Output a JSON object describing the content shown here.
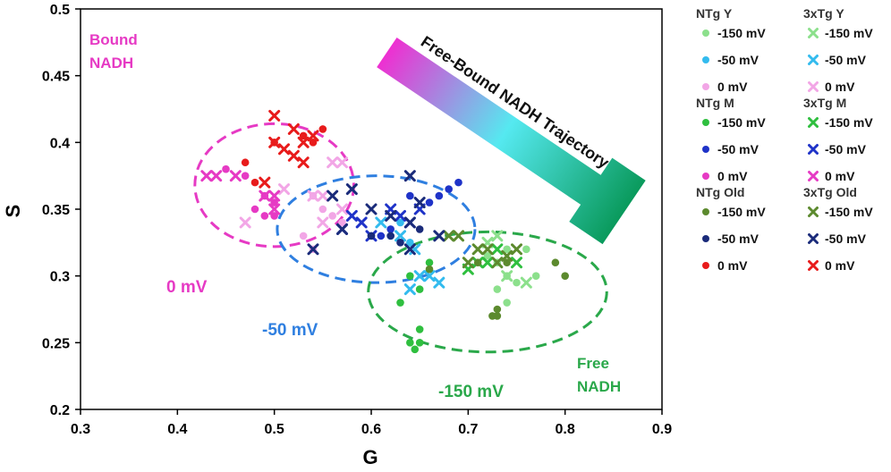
{
  "chart_data": {
    "type": "scatter",
    "xlabel": "G",
    "ylabel": "S",
    "xlim": [
      0.3,
      0.9
    ],
    "ylim": [
      0.2,
      0.5
    ],
    "xticks": [
      "0.3",
      "0.4",
      "0.5",
      "0.6",
      "0.7",
      "0.8",
      "0.9"
    ],
    "yticks": [
      "0.2",
      "0.25",
      "0.3",
      "0.35",
      "0.4",
      "0.45",
      "0.5"
    ],
    "legend_groups": [
      {
        "title": "NTg Y",
        "entries": [
          {
            "label": "-150 mV",
            "marker": "circle",
            "color": "#8ce08c"
          },
          {
            "label": "-50 mV",
            "marker": "circle",
            "color": "#33bbee"
          },
          {
            "label": "0 mV",
            "marker": "circle",
            "color": "#f2a6e6"
          }
        ]
      },
      {
        "title": "3xTg Y",
        "entries": [
          {
            "label": "-150 mV",
            "marker": "x",
            "color": "#8ce08c"
          },
          {
            "label": "-50 mV",
            "marker": "x",
            "color": "#33bbee"
          },
          {
            "label": "0 mV",
            "marker": "x",
            "color": "#f2a6e6"
          }
        ]
      },
      {
        "title": "NTg M",
        "entries": [
          {
            "label": "-150 mV",
            "marker": "circle",
            "color": "#2fbf3f"
          },
          {
            "label": "-50 mV",
            "marker": "circle",
            "color": "#1f33c8"
          },
          {
            "label": "0 mV",
            "marker": "circle",
            "color": "#e63ac4"
          }
        ]
      },
      {
        "title": "3xTg M",
        "entries": [
          {
            "label": "-150 mV",
            "marker": "x",
            "color": "#2fbf3f"
          },
          {
            "label": "-50 mV",
            "marker": "x",
            "color": "#1f33c8"
          },
          {
            "label": "0 mV",
            "marker": "x",
            "color": "#e63ac4"
          }
        ]
      },
      {
        "title": "NTg Old",
        "entries": [
          {
            "label": "-150 mV",
            "marker": "circle",
            "color": "#5c8a2e"
          },
          {
            "label": "-50 mV",
            "marker": "circle",
            "color": "#1a2b7a"
          },
          {
            "label": "0 mV",
            "marker": "circle",
            "color": "#e81b1b"
          }
        ]
      },
      {
        "title": "3xTg Old",
        "entries": [
          {
            "label": "-150 mV",
            "marker": "x",
            "color": "#5c8a2e"
          },
          {
            "label": "-50 mV",
            "marker": "x",
            "color": "#1a2b7a"
          },
          {
            "label": "0 mV",
            "marker": "x",
            "color": "#e81b1b"
          }
        ]
      }
    ],
    "series": [
      {
        "name": "NTg Y -150 mV",
        "marker": "circle",
        "color": "#8ce08c",
        "points": [
          [
            0.73,
            0.31
          ],
          [
            0.74,
            0.3
          ],
          [
            0.75,
            0.295
          ],
          [
            0.74,
            0.28
          ],
          [
            0.73,
            0.29
          ],
          [
            0.77,
            0.3
          ],
          [
            0.76,
            0.32
          ],
          [
            0.72,
            0.315
          ],
          [
            0.74,
            0.32
          ]
        ]
      },
      {
        "name": "NTg Y -50 mV",
        "marker": "circle",
        "color": "#33bbee",
        "points": [
          [
            0.62,
            0.33
          ],
          [
            0.64,
            0.325
          ],
          [
            0.63,
            0.34
          ]
        ]
      },
      {
        "name": "NTg Y 0 mV",
        "marker": "circle",
        "color": "#f2a6e6",
        "points": [
          [
            0.55,
            0.35
          ],
          [
            0.56,
            0.345
          ],
          [
            0.54,
            0.36
          ],
          [
            0.53,
            0.33
          ],
          [
            0.54,
            0.32
          ],
          [
            0.57,
            0.34
          ]
        ]
      },
      {
        "name": "3xTg Y -150 mV",
        "marker": "x",
        "color": "#8ce08c",
        "points": [
          [
            0.74,
            0.3
          ],
          [
            0.76,
            0.295
          ],
          [
            0.72,
            0.325
          ],
          [
            0.73,
            0.33
          ]
        ]
      },
      {
        "name": "3xTg Y -50 mV",
        "marker": "x",
        "color": "#33bbee",
        "points": [
          [
            0.64,
            0.29
          ],
          [
            0.65,
            0.3
          ],
          [
            0.66,
            0.3
          ],
          [
            0.67,
            0.295
          ],
          [
            0.645,
            0.32
          ],
          [
            0.61,
            0.34
          ],
          [
            0.63,
            0.33
          ]
        ]
      },
      {
        "name": "3xTg Y 0 mV",
        "marker": "x",
        "color": "#f2a6e6",
        "points": [
          [
            0.51,
            0.365
          ],
          [
            0.56,
            0.385
          ],
          [
            0.57,
            0.385
          ],
          [
            0.55,
            0.36
          ],
          [
            0.54,
            0.36
          ],
          [
            0.47,
            0.34
          ],
          [
            0.55,
            0.34
          ],
          [
            0.57,
            0.35
          ]
        ]
      },
      {
        "name": "NTg M -150 mV",
        "marker": "circle",
        "color": "#2fbf3f",
        "points": [
          [
            0.64,
            0.25
          ],
          [
            0.645,
            0.245
          ],
          [
            0.65,
            0.25
          ],
          [
            0.65,
            0.26
          ],
          [
            0.64,
            0.3
          ],
          [
            0.65,
            0.29
          ],
          [
            0.63,
            0.28
          ],
          [
            0.66,
            0.31
          ]
        ]
      },
      {
        "name": "NTg M -50 mV",
        "marker": "circle",
        "color": "#1f33c8",
        "points": [
          [
            0.6,
            0.33
          ],
          [
            0.61,
            0.33
          ],
          [
            0.62,
            0.335
          ],
          [
            0.64,
            0.36
          ],
          [
            0.66,
            0.355
          ],
          [
            0.67,
            0.36
          ],
          [
            0.68,
            0.365
          ],
          [
            0.69,
            0.37
          ]
        ]
      },
      {
        "name": "NTg M 0 mV",
        "marker": "circle",
        "color": "#e63ac4",
        "points": [
          [
            0.45,
            0.38
          ],
          [
            0.47,
            0.375
          ],
          [
            0.49,
            0.36
          ],
          [
            0.5,
            0.355
          ],
          [
            0.48,
            0.35
          ],
          [
            0.49,
            0.345
          ],
          [
            0.5,
            0.345
          ]
        ]
      },
      {
        "name": "3xTg M -150 mV",
        "marker": "x",
        "color": "#2fbf3f",
        "points": [
          [
            0.71,
            0.31
          ],
          [
            0.72,
            0.31
          ],
          [
            0.73,
            0.32
          ],
          [
            0.75,
            0.31
          ],
          [
            0.7,
            0.305
          ]
        ]
      },
      {
        "name": "3xTg M -50 mV",
        "marker": "x",
        "color": "#1f33c8",
        "points": [
          [
            0.57,
            0.335
          ],
          [
            0.58,
            0.345
          ],
          [
            0.59,
            0.34
          ],
          [
            0.6,
            0.33
          ],
          [
            0.62,
            0.35
          ],
          [
            0.63,
            0.345
          ],
          [
            0.64,
            0.34
          ],
          [
            0.65,
            0.35
          ]
        ]
      },
      {
        "name": "3xTg M 0 mV",
        "marker": "x",
        "color": "#e63ac4",
        "points": [
          [
            0.43,
            0.375
          ],
          [
            0.44,
            0.375
          ],
          [
            0.46,
            0.375
          ],
          [
            0.49,
            0.36
          ],
          [
            0.5,
            0.36
          ],
          [
            0.5,
            0.35
          ]
        ]
      },
      {
        "name": "NTg Old -150 mV",
        "marker": "circle",
        "color": "#5c8a2e",
        "points": [
          [
            0.79,
            0.31
          ],
          [
            0.8,
            0.3
          ],
          [
            0.725,
            0.27
          ],
          [
            0.73,
            0.27
          ],
          [
            0.73,
            0.275
          ],
          [
            0.71,
            0.31
          ],
          [
            0.74,
            0.31
          ],
          [
            0.66,
            0.305
          ]
        ]
      },
      {
        "name": "NTg Old -50 mV",
        "marker": "circle",
        "color": "#1a2b7a",
        "points": [
          [
            0.6,
            0.33
          ],
          [
            0.62,
            0.33
          ],
          [
            0.65,
            0.335
          ],
          [
            0.63,
            0.325
          ]
        ]
      },
      {
        "name": "NTg Old 0 mV",
        "marker": "circle",
        "color": "#e81b1b",
        "points": [
          [
            0.47,
            0.385
          ],
          [
            0.48,
            0.37
          ],
          [
            0.53,
            0.405
          ],
          [
            0.54,
            0.4
          ],
          [
            0.55,
            0.41
          ],
          [
            0.5,
            0.4
          ]
        ]
      },
      {
        "name": "3xTg Old -150 mV",
        "marker": "x",
        "color": "#5c8a2e",
        "points": [
          [
            0.7,
            0.31
          ],
          [
            0.72,
            0.32
          ],
          [
            0.73,
            0.31
          ],
          [
            0.74,
            0.315
          ],
          [
            0.69,
            0.33
          ],
          [
            0.68,
            0.33
          ],
          [
            0.75,
            0.32
          ],
          [
            0.71,
            0.32
          ]
        ]
      },
      {
        "name": "3xTg Old -50 mV",
        "marker": "x",
        "color": "#1a2b7a",
        "points": [
          [
            0.58,
            0.365
          ],
          [
            0.57,
            0.335
          ],
          [
            0.6,
            0.35
          ],
          [
            0.62,
            0.345
          ],
          [
            0.64,
            0.34
          ],
          [
            0.64,
            0.375
          ],
          [
            0.64,
            0.32
          ],
          [
            0.54,
            0.32
          ],
          [
            0.56,
            0.36
          ],
          [
            0.67,
            0.33
          ],
          [
            0.65,
            0.355
          ]
        ]
      },
      {
        "name": "3xTg Old 0 mV",
        "marker": "x",
        "color": "#e81b1b",
        "points": [
          [
            0.49,
            0.37
          ],
          [
            0.5,
            0.42
          ],
          [
            0.52,
            0.41
          ],
          [
            0.51,
            0.395
          ],
          [
            0.52,
            0.39
          ],
          [
            0.53,
            0.385
          ],
          [
            0.5,
            0.4
          ],
          [
            0.53,
            0.4
          ],
          [
            0.54,
            0.405
          ]
        ]
      }
    ],
    "ellipses": [
      {
        "label": "0 mV",
        "color": "#e63ac4",
        "cx": 0.5,
        "cy": 0.368,
        "rx": 0.082,
        "ry": 0.046
      },
      {
        "label": "-50 mV",
        "color": "#2f7fe0",
        "cx": 0.605,
        "cy": 0.335,
        "rx": 0.102,
        "ry": 0.04
      },
      {
        "label": "-150 mV",
        "color": "#2aa84a",
        "cx": 0.72,
        "cy": 0.288,
        "rx": 0.123,
        "ry": 0.045
      }
    ],
    "annotations": [
      {
        "text": "Bound",
        "color": "#e63ac4"
      },
      {
        "text": "NADH",
        "color": "#e63ac4"
      },
      {
        "text": "0 mV",
        "color": "#e63ac4"
      },
      {
        "text": "-50 mV",
        "color": "#2f7fe0"
      },
      {
        "text": "-150 mV",
        "color": "#2aa84a"
      },
      {
        "text": "Free",
        "color": "#2aa84a"
      },
      {
        "text": "NADH",
        "color": "#2aa84a"
      }
    ],
    "arrow_label": "Free-Bound NADH Trajectory",
    "arrow_colors": [
      "#0a9a5c",
      "#55e9f0",
      "#ee2fd1"
    ],
    "grid": false
  }
}
